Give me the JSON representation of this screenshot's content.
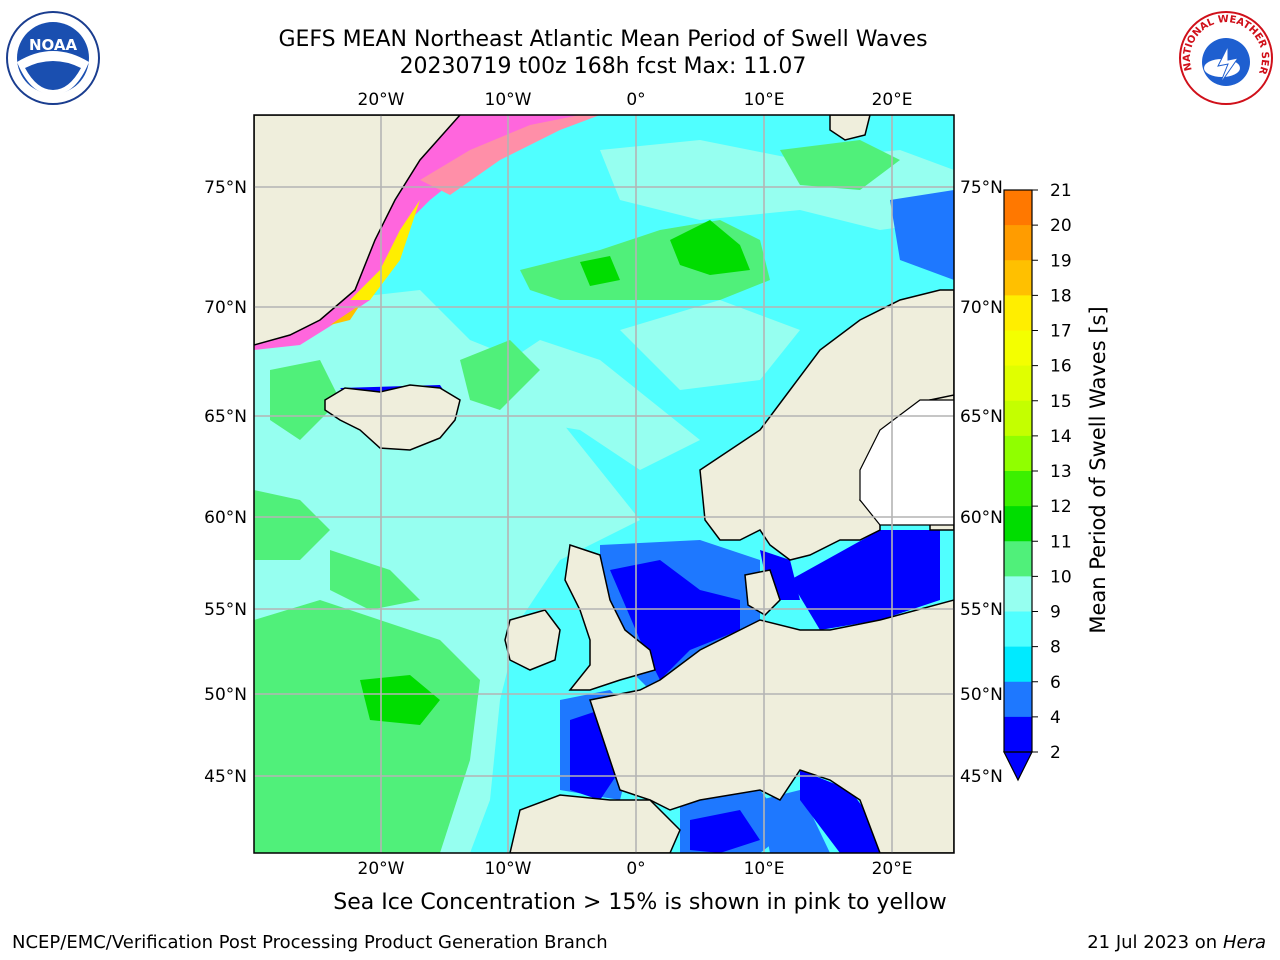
{
  "header": {
    "title": "GEFS MEAN Northeast Atlantic Mean Period of Swell Waves",
    "subtitle": "20230719 t00z 168h fcst   Max: 11.07"
  },
  "logos": {
    "left": {
      "text": "NOAA",
      "icon": "noaa-seal-icon"
    },
    "right": {
      "icon": "nws-seal-icon",
      "ring_text": "NATIONAL WEATHER SERVICE"
    }
  },
  "axes": {
    "lon_ticks": [
      "20°W",
      "10°W",
      "0°",
      "10°E",
      "20°E"
    ],
    "lat_ticks": [
      "75°N",
      "70°N",
      "65°N",
      "60°N",
      "55°N",
      "50°N",
      "45°N"
    ]
  },
  "colorbar": {
    "label": "Mean Period of Swell Waves [s]",
    "ticks": [
      "21",
      "20",
      "19",
      "18",
      "17",
      "16",
      "15",
      "14",
      "13",
      "12",
      "11",
      "10",
      "9",
      "8",
      "6",
      "4",
      "2"
    ],
    "colors": [
      "#ff0000",
      "#ff2a00",
      "#ff5000",
      "#ff7800",
      "#ff9c00",
      "#ffc000",
      "#ffee00",
      "#f4ff00",
      "#e0ff00",
      "#c4ff00",
      "#90ff00",
      "#3cf000",
      "#00dd00",
      "#50f07a",
      "#96fff0",
      "#50ffff",
      "#00eaff",
      "#1e78ff",
      "#0000ff"
    ]
  },
  "chart_data": {
    "type": "heatmap",
    "title": "GEFS MEAN Northeast Atlantic Mean Period of Swell Waves",
    "subtitle": "20230719 t00z 168h fcst   Max: 11.07",
    "variable": "Mean Period of Swell Waves [s]",
    "max": 11.07,
    "lon_range": [
      -30,
      25
    ],
    "lat_range": [
      41,
      78
    ],
    "levels": [
      2,
      4,
      6,
      8,
      9,
      10,
      11,
      12,
      13,
      14,
      15,
      16,
      17,
      18,
      19,
      20,
      21
    ],
    "extend": "min",
    "note": "Sea Ice Concentration > 15% is shown in pink to yellow"
  },
  "footer": {
    "left": "NCEP/EMC/Verification Post Processing Product Generation Branch",
    "right_date": "21 Jul 2023 on ",
    "right_machine": "Hera"
  }
}
